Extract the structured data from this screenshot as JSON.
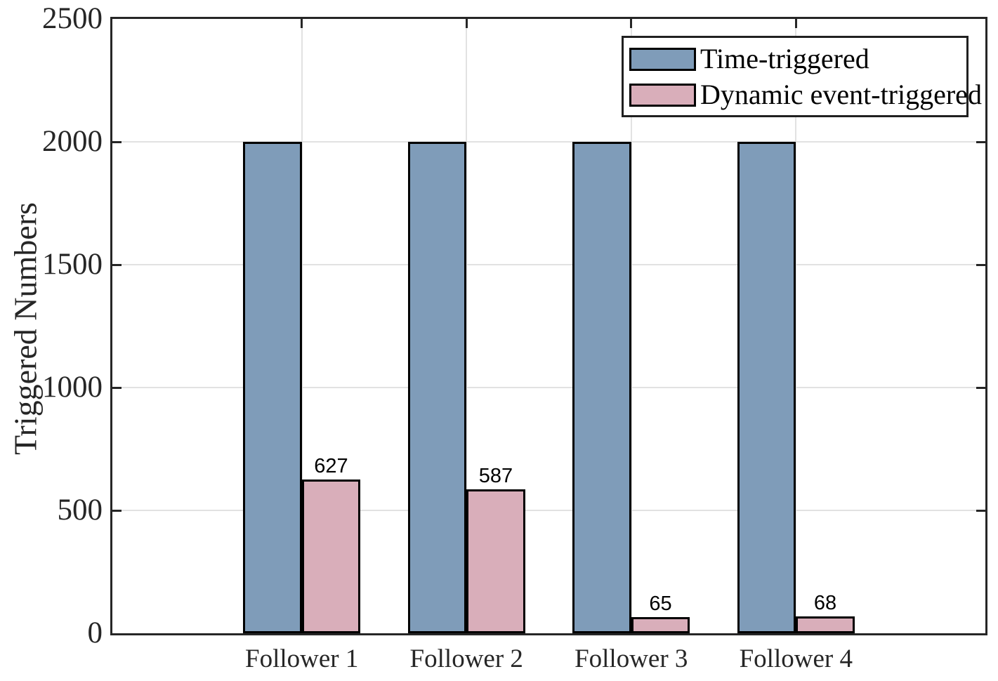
{
  "chart_data": {
    "type": "bar",
    "title": "",
    "categories": [
      "Follower 1",
      "Follower 2",
      "Follower 3",
      "Follower 4"
    ],
    "series": [
      {
        "name": "Time-triggered",
        "color": "#7F9CB9",
        "values": [
          2000,
          2000,
          2000,
          2000
        ],
        "value_labels": false
      },
      {
        "name": "Dynamic event-triggered",
        "color": "#D9AEBA",
        "values": [
          627,
          587,
          65,
          68
        ],
        "value_labels": true
      }
    ],
    "xlabel": "",
    "ylabel": "Triggered Numbers",
    "ylim": [
      0,
      2500
    ],
    "yticks": [
      0,
      500,
      1000,
      1500,
      2000,
      2500
    ],
    "grid": "both",
    "legend_position": "top-right",
    "colors": {
      "bar_edge": "#000000",
      "axis": "#262626",
      "grid": "#E2E2E2",
      "background": "#FFFFFF"
    }
  }
}
